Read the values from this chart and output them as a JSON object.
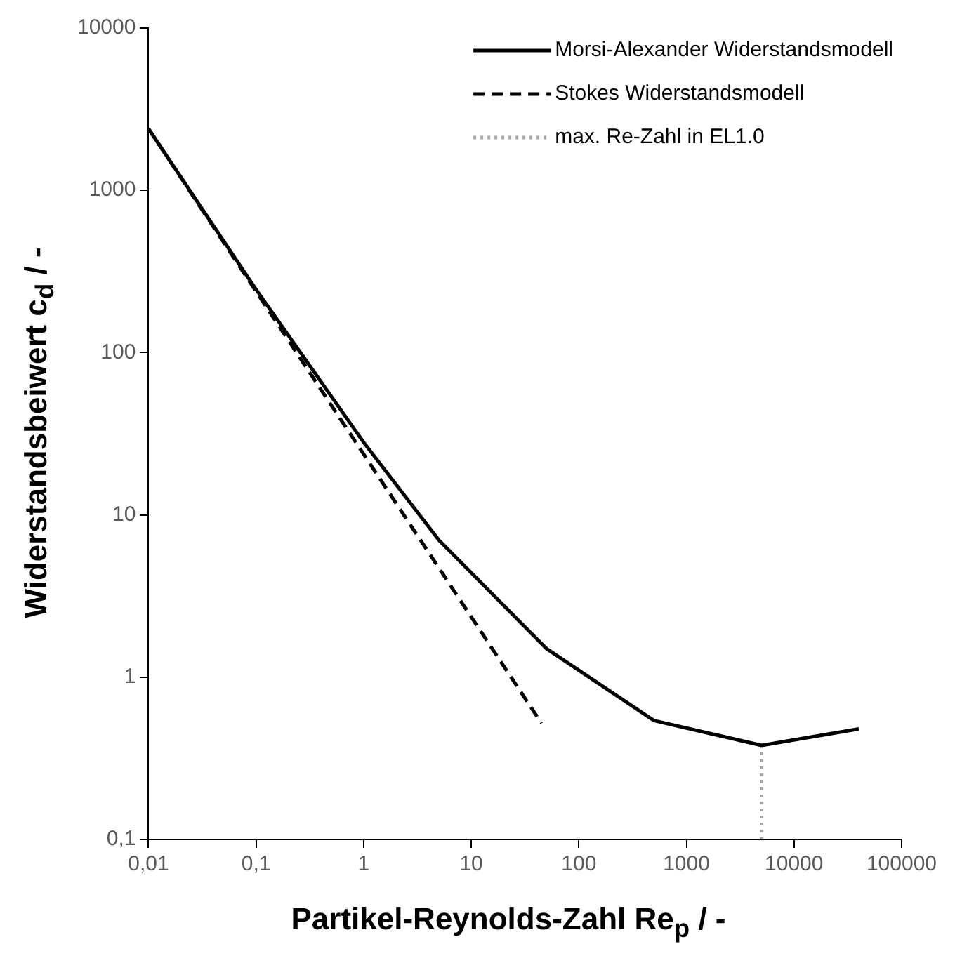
{
  "chart_data": {
    "type": "line",
    "xlabel": "Partikel-Reynolds-Zahl Re$_{p}$ / -",
    "ylabel": "Widerstandsbeiwert c$_{d}$ / -",
    "log": "xy",
    "grid": false,
    "legend": "top right",
    "marker": "none",
    "xlim": [
      0.01,
      100000
    ],
    "ylim": [
      0.1,
      10000
    ],
    "xticks": [
      {
        "value": 0.01,
        "label": "0,01"
      },
      {
        "value": 0.1,
        "label": "0,1"
      },
      1,
      10,
      100,
      1000,
      10000,
      100000
    ],
    "yticks": [
      {
        "value": 0.1,
        "label": "0,1"
      },
      1,
      10,
      100,
      1000,
      10000
    ],
    "series": [
      {
        "name": "Morsi-Alexander Widerstandsmodell",
        "color": "#000000",
        "line_style": "solid",
        "x": [
          0.01,
          0.1,
          1,
          5,
          50,
          500,
          5000,
          40000
        ],
        "values": [
          2400,
          245,
          28,
          7,
          1.5,
          0.54,
          0.38,
          0.48
        ]
      },
      {
        "name": "Stokes Widerstandsmodell",
        "color": "#000000",
        "line_style": "dashed",
        "x": [
          0.01,
          45
        ],
        "values": [
          2400,
          0.52
        ]
      },
      {
        "name": "max. Re-Zahl in EL1.0",
        "color": "#a6a6a6",
        "line_style": "dotted",
        "x": [
          5000,
          5000
        ],
        "values": [
          0.1,
          0.38
        ]
      }
    ]
  }
}
